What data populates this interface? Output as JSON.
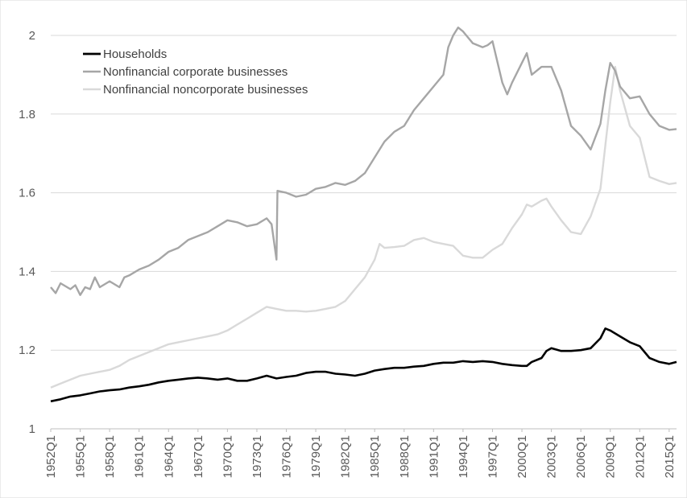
{
  "chart_data": {
    "type": "line",
    "title": "",
    "xlabel": "",
    "ylabel": "",
    "ylim": [
      1,
      2
    ],
    "yticks": [
      "1",
      "1.2",
      "1.4",
      "1.6",
      "1.8",
      "2"
    ],
    "xticks": [
      "1952Q1",
      "1955Q1",
      "1958Q1",
      "1961Q1",
      "1964Q1",
      "1967Q1",
      "1970Q1",
      "1973Q1",
      "1976Q1",
      "1979Q1",
      "1982Q1",
      "1985Q1",
      "1988Q1",
      "1991Q1",
      "1994Q1",
      "1997Q1",
      "2000Q1",
      "2003Q1",
      "2006Q1",
      "2009Q1",
      "2012Q1",
      "2015Q1"
    ],
    "x_range": [
      "1952Q1",
      "2015Q4"
    ],
    "grid": "horizontal",
    "legend_position": "top-left",
    "series": [
      {
        "name": "Households",
        "color": "#000000",
        "points": [
          [
            1952,
            1.07
          ],
          [
            1953,
            1.075
          ],
          [
            1954,
            1.082
          ],
          [
            1955,
            1.085
          ],
          [
            1956,
            1.09
          ],
          [
            1957,
            1.095
          ],
          [
            1958,
            1.098
          ],
          [
            1959,
            1.1
          ],
          [
            1960,
            1.105
          ],
          [
            1961,
            1.108
          ],
          [
            1962,
            1.112
          ],
          [
            1963,
            1.118
          ],
          [
            1964,
            1.122
          ],
          [
            1965,
            1.125
          ],
          [
            1966,
            1.128
          ],
          [
            1967,
            1.13
          ],
          [
            1968,
            1.128
          ],
          [
            1969,
            1.125
          ],
          [
            1970,
            1.128
          ],
          [
            1971,
            1.122
          ],
          [
            1972,
            1.122
          ],
          [
            1973,
            1.128
          ],
          [
            1974,
            1.135
          ],
          [
            1975,
            1.128
          ],
          [
            1976,
            1.132
          ],
          [
            1977,
            1.135
          ],
          [
            1978,
            1.142
          ],
          [
            1979,
            1.145
          ],
          [
            1980,
            1.145
          ],
          [
            1981,
            1.14
          ],
          [
            1982,
            1.138
          ],
          [
            1983,
            1.135
          ],
          [
            1984,
            1.14
          ],
          [
            1985,
            1.148
          ],
          [
            1986,
            1.152
          ],
          [
            1987,
            1.155
          ],
          [
            1988,
            1.155
          ],
          [
            1989,
            1.158
          ],
          [
            1990,
            1.16
          ],
          [
            1991,
            1.165
          ],
          [
            1992,
            1.168
          ],
          [
            1993,
            1.168
          ],
          [
            1994,
            1.172
          ],
          [
            1995,
            1.17
          ],
          [
            1996,
            1.172
          ],
          [
            1997,
            1.17
          ],
          [
            1998,
            1.165
          ],
          [
            1999,
            1.162
          ],
          [
            2000,
            1.16
          ],
          [
            2000.5,
            1.16
          ],
          [
            2001,
            1.17
          ],
          [
            2002,
            1.18
          ],
          [
            2002.5,
            1.198
          ],
          [
            2003,
            1.205
          ],
          [
            2004,
            1.198
          ],
          [
            2005,
            1.198
          ],
          [
            2006,
            1.2
          ],
          [
            2007,
            1.205
          ],
          [
            2008,
            1.23
          ],
          [
            2008.5,
            1.255
          ],
          [
            2009,
            1.25
          ],
          [
            2010,
            1.235
          ],
          [
            2011,
            1.22
          ],
          [
            2012,
            1.21
          ],
          [
            2013,
            1.18
          ],
          [
            2014,
            1.17
          ],
          [
            2015,
            1.165
          ],
          [
            2015.75,
            1.17
          ]
        ]
      },
      {
        "name": "Nonfinancial corporate businesses",
        "color": "#a6a6a6",
        "points": [
          [
            1952,
            1.36
          ],
          [
            1952.5,
            1.345
          ],
          [
            1953,
            1.37
          ],
          [
            1954,
            1.355
          ],
          [
            1954.5,
            1.365
          ],
          [
            1955,
            1.34
          ],
          [
            1955.5,
            1.36
          ],
          [
            1956,
            1.355
          ],
          [
            1956.5,
            1.385
          ],
          [
            1957,
            1.36
          ],
          [
            1958,
            1.375
          ],
          [
            1959,
            1.36
          ],
          [
            1959.5,
            1.385
          ],
          [
            1960,
            1.39
          ],
          [
            1961,
            1.405
          ],
          [
            1962,
            1.415
          ],
          [
            1963,
            1.43
          ],
          [
            1964,
            1.45
          ],
          [
            1965,
            1.46
          ],
          [
            1966,
            1.48
          ],
          [
            1967,
            1.49
          ],
          [
            1968,
            1.5
          ],
          [
            1969,
            1.515
          ],
          [
            1970,
            1.53
          ],
          [
            1971,
            1.525
          ],
          [
            1972,
            1.515
          ],
          [
            1973,
            1.52
          ],
          [
            1974,
            1.535
          ],
          [
            1974.5,
            1.52
          ],
          [
            1975,
            1.43
          ],
          [
            1975.1,
            1.605
          ],
          [
            1976,
            1.6
          ],
          [
            1977,
            1.59
          ],
          [
            1978,
            1.595
          ],
          [
            1979,
            1.61
          ],
          [
            1980,
            1.615
          ],
          [
            1981,
            1.625
          ],
          [
            1982,
            1.62
          ],
          [
            1983,
            1.63
          ],
          [
            1984,
            1.65
          ],
          [
            1985,
            1.69
          ],
          [
            1986,
            1.73
          ],
          [
            1987,
            1.755
          ],
          [
            1988,
            1.77
          ],
          [
            1989,
            1.81
          ],
          [
            1990,
            1.84
          ],
          [
            1991,
            1.87
          ],
          [
            1992,
            1.9
          ],
          [
            1992.5,
            1.97
          ],
          [
            1993,
            2.0
          ],
          [
            1993.5,
            2.02
          ],
          [
            1994,
            2.01
          ],
          [
            1995,
            1.98
          ],
          [
            1996,
            1.97
          ],
          [
            1996.5,
            1.975
          ],
          [
            1997,
            1.985
          ],
          [
            1998,
            1.88
          ],
          [
            1998.5,
            1.85
          ],
          [
            1999,
            1.88
          ],
          [
            2000,
            1.93
          ],
          [
            2000.5,
            1.955
          ],
          [
            2001,
            1.9
          ],
          [
            2002,
            1.92
          ],
          [
            2003,
            1.92
          ],
          [
            2004,
            1.86
          ],
          [
            2005,
            1.77
          ],
          [
            2006,
            1.745
          ],
          [
            2007,
            1.71
          ],
          [
            2008,
            1.775
          ],
          [
            2008.5,
            1.86
          ],
          [
            2009,
            1.93
          ],
          [
            2009.5,
            1.91
          ],
          [
            2010,
            1.87
          ],
          [
            2011,
            1.84
          ],
          [
            2012,
            1.845
          ],
          [
            2013,
            1.8
          ],
          [
            2014,
            1.77
          ],
          [
            2015,
            1.76
          ],
          [
            2015.75,
            1.762
          ]
        ]
      },
      {
        "name": "Nonfinancial noncorporate businesses",
        "color": "#d9d9d9",
        "points": [
          [
            1952,
            1.105
          ],
          [
            1953,
            1.115
          ],
          [
            1954,
            1.125
          ],
          [
            1955,
            1.135
          ],
          [
            1956,
            1.14
          ],
          [
            1957,
            1.145
          ],
          [
            1958,
            1.15
          ],
          [
            1959,
            1.16
          ],
          [
            1960,
            1.175
          ],
          [
            1961,
            1.185
          ],
          [
            1962,
            1.195
          ],
          [
            1963,
            1.205
          ],
          [
            1964,
            1.215
          ],
          [
            1965,
            1.22
          ],
          [
            1966,
            1.225
          ],
          [
            1967,
            1.23
          ],
          [
            1968,
            1.235
          ],
          [
            1969,
            1.24
          ],
          [
            1970,
            1.25
          ],
          [
            1971,
            1.265
          ],
          [
            1972,
            1.28
          ],
          [
            1973,
            1.295
          ],
          [
            1974,
            1.31
          ],
          [
            1975,
            1.305
          ],
          [
            1976,
            1.3
          ],
          [
            1977,
            1.3
          ],
          [
            1978,
            1.298
          ],
          [
            1979,
            1.3
          ],
          [
            1980,
            1.305
          ],
          [
            1981,
            1.31
          ],
          [
            1982,
            1.325
          ],
          [
            1983,
            1.355
          ],
          [
            1984,
            1.385
          ],
          [
            1985,
            1.43
          ],
          [
            1985.5,
            1.47
          ],
          [
            1986,
            1.46
          ],
          [
            1987,
            1.462
          ],
          [
            1988,
            1.465
          ],
          [
            1989,
            1.48
          ],
          [
            1990,
            1.485
          ],
          [
            1991,
            1.475
          ],
          [
            1992,
            1.47
          ],
          [
            1993,
            1.465
          ],
          [
            1994,
            1.44
          ],
          [
            1995,
            1.435
          ],
          [
            1996,
            1.435
          ],
          [
            1997,
            1.455
          ],
          [
            1998,
            1.47
          ],
          [
            1999,
            1.51
          ],
          [
            2000,
            1.545
          ],
          [
            2000.5,
            1.57
          ],
          [
            2001,
            1.565
          ],
          [
            2002,
            1.58
          ],
          [
            2002.5,
            1.585
          ],
          [
            2003,
            1.565
          ],
          [
            2004,
            1.53
          ],
          [
            2005,
            1.5
          ],
          [
            2006,
            1.495
          ],
          [
            2007,
            1.54
          ],
          [
            2008,
            1.61
          ],
          [
            2008.5,
            1.72
          ],
          [
            2009,
            1.83
          ],
          [
            2009.5,
            1.92
          ],
          [
            2010,
            1.86
          ],
          [
            2011,
            1.77
          ],
          [
            2012,
            1.74
          ],
          [
            2013,
            1.64
          ],
          [
            2014,
            1.63
          ],
          [
            2015,
            1.622
          ],
          [
            2015.75,
            1.625
          ]
        ]
      }
    ]
  }
}
